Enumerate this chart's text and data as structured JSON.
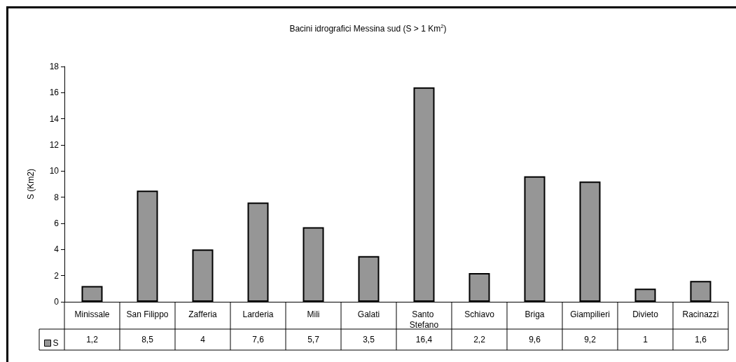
{
  "chart_data": {
    "type": "bar",
    "title": "Bacini idrografici Messina sud (S > 1 Km$^{2}$)",
    "ylabel": "S (Km2)",
    "categories": [
      "Minissale",
      "San Filippo",
      "Zafferia",
      "Larderia",
      "Mili",
      "Galati",
      "Santo Stefano",
      "Schiavo",
      "Briga",
      "Giampilieri",
      "Divieto",
      "Racinazzi"
    ],
    "series": [
      {
        "name": "S",
        "color": "#969696",
        "values": [
          1.2,
          8.5,
          4,
          7.6,
          5.7,
          3.5,
          16.4,
          2.2,
          9.6,
          9.2,
          1,
          1.6
        ],
        "value_labels": [
          "1,2",
          "8,5",
          "4",
          "7,6",
          "5,7",
          "3,5",
          "16,4",
          "2,2",
          "9,6",
          "9,2",
          "1",
          "1,6"
        ]
      }
    ],
    "ylim": [
      0,
      18
    ],
    "yticks": [
      0,
      2,
      4,
      6,
      8,
      10,
      12,
      14,
      16,
      18
    ],
    "grid": false,
    "legend": "bottom left"
  }
}
